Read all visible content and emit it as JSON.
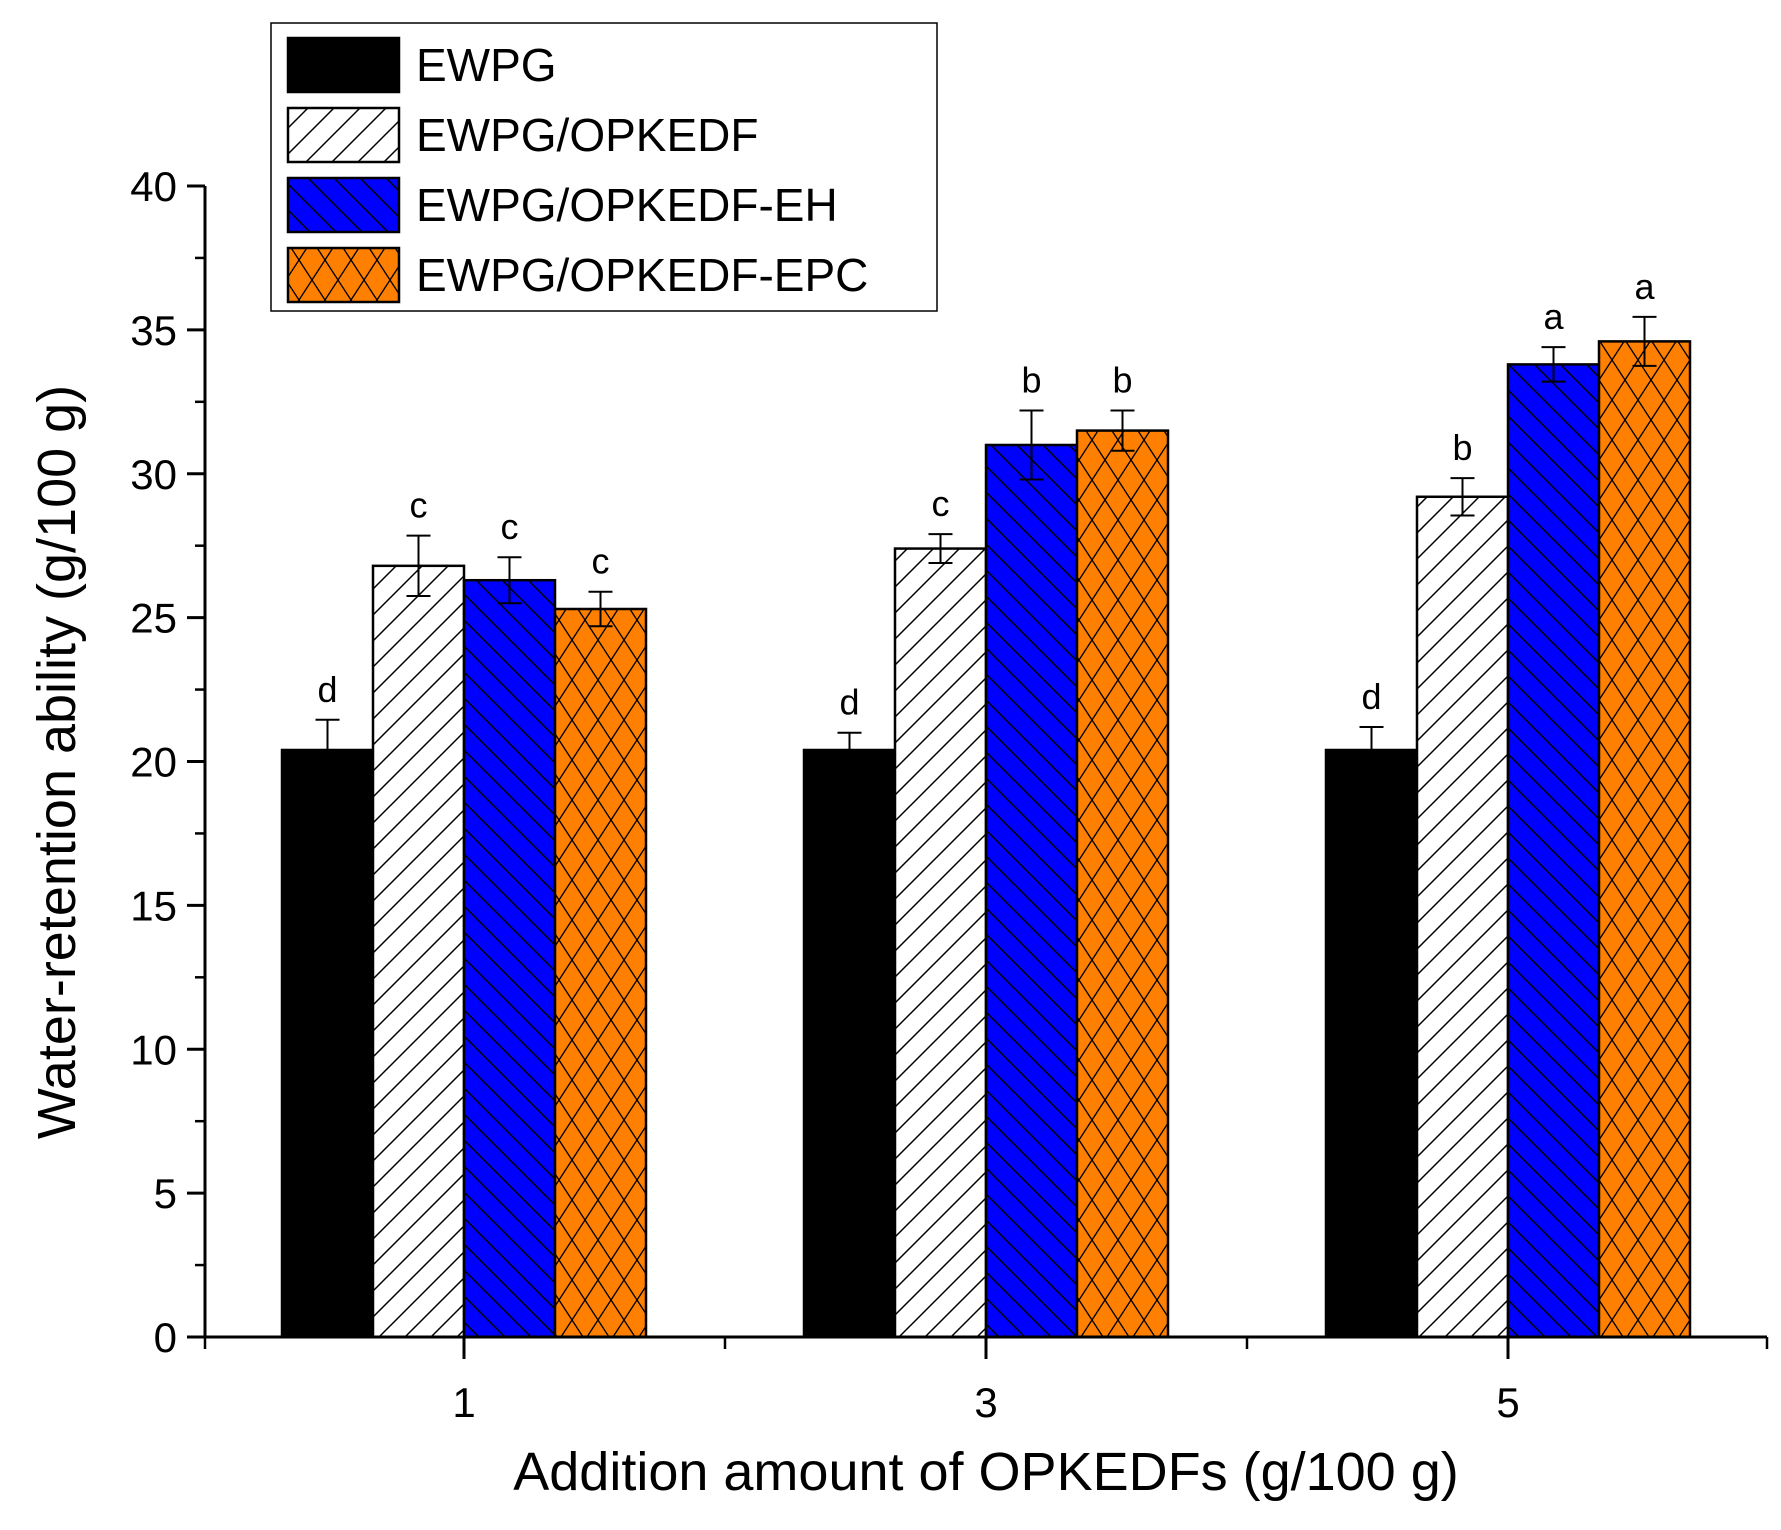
{
  "chart_data": {
    "type": "bar",
    "title": "",
    "xlabel": "Addition amount of OPKEDFs (g/100 g)",
    "ylabel": "Water-retention ability (g/100 g)",
    "categories": [
      "1",
      "3",
      "5"
    ],
    "ylim": [
      0,
      40
    ],
    "yticks": [
      "0",
      "5",
      "10",
      "15",
      "20",
      "25",
      "30",
      "35",
      "40"
    ],
    "grid": false,
    "legend_position": "top-left",
    "series": [
      {
        "name": "EWPG",
        "color": "#000000",
        "pattern": "solid",
        "values": [
          20.4,
          20.4,
          20.4
        ],
        "errors": [
          1.05,
          0.6,
          0.8
        ],
        "letters": [
          "d",
          "d",
          "d"
        ]
      },
      {
        "name": "EWPG/OPKEDF",
        "color": "#ffffff",
        "pattern": "forward-diagonal",
        "values": [
          26.8,
          27.4,
          29.2
        ],
        "errors": [
          1.05,
          0.5,
          0.65
        ],
        "letters": [
          "c",
          "c",
          "b"
        ]
      },
      {
        "name": "EWPG/OPKEDF-EH",
        "color": "#0000ff",
        "pattern": "back-diagonal",
        "values": [
          26.3,
          31.0,
          33.8
        ],
        "errors": [
          0.8,
          1.2,
          0.6
        ],
        "letters": [
          "c",
          "b",
          "a"
        ]
      },
      {
        "name": "EWPG/OPKEDF-EPC",
        "color": "#ff8000",
        "pattern": "crosshatch",
        "values": [
          25.3,
          31.5,
          34.6
        ],
        "errors": [
          0.6,
          0.7,
          0.85
        ],
        "letters": [
          "c",
          "b",
          "a"
        ]
      }
    ]
  }
}
